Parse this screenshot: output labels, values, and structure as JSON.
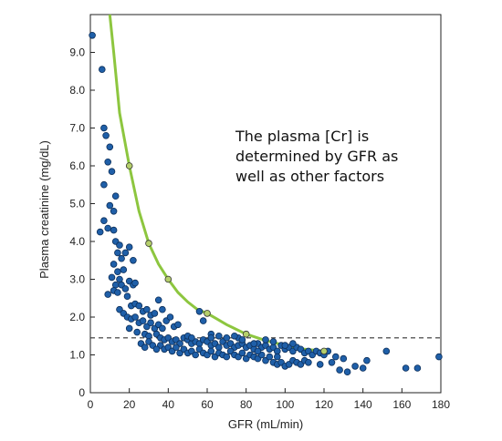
{
  "chart_data": {
    "type": "scatter",
    "title": "",
    "xlabel": "GFR (mL/min)",
    "ylabel": "Plasma creatinine (mg/dL)",
    "xlim": [
      0,
      180
    ],
    "ylim": [
      0,
      10
    ],
    "x_ticks": [
      0,
      20,
      40,
      60,
      80,
      100,
      120,
      140,
      160,
      180
    ],
    "y_ticks": [
      {
        "value": 0,
        "label": "0"
      },
      {
        "value": 1,
        "label": "1.0"
      },
      {
        "value": 2,
        "label": "2.0"
      },
      {
        "value": 3,
        "label": "3.0"
      },
      {
        "value": 4,
        "label": "4.0"
      },
      {
        "value": 5,
        "label": "5.0"
      },
      {
        "value": 6,
        "label": "6.0"
      },
      {
        "value": 7,
        "label": "7.0"
      },
      {
        "value": 8,
        "label": "8.0"
      },
      {
        "value": 9,
        "label": "9.0"
      }
    ],
    "grid": false,
    "annotation": [
      "The plasma [Cr] is",
      "determined by GFR as",
      "well as other factors"
    ],
    "reference_line": {
      "y": 1.45,
      "style": "dashed",
      "color": "#333333"
    },
    "curve": {
      "color": "#8dc63f",
      "points": [
        [
          10,
          10.4
        ],
        [
          12,
          9.0
        ],
        [
          15,
          7.4
        ],
        [
          20,
          6.0
        ],
        [
          25,
          4.8
        ],
        [
          30,
          3.95
        ],
        [
          35,
          3.4
        ],
        [
          40,
          3.0
        ],
        [
          45,
          2.65
        ],
        [
          50,
          2.4
        ],
        [
          55,
          2.2
        ],
        [
          60,
          2.1
        ],
        [
          65,
          1.95
        ],
        [
          70,
          1.8
        ],
        [
          80,
          1.55
        ],
        [
          90,
          1.38
        ],
        [
          100,
          1.25
        ],
        [
          110,
          1.15
        ],
        [
          120,
          1.1
        ]
      ],
      "markers_x": [
        20,
        30,
        40,
        60,
        80,
        120
      ],
      "marker_color": "#b5cf6b"
    },
    "series": [
      {
        "color": "#1f5fa8",
        "points": [
          [
            1,
            9.45
          ],
          [
            6,
            8.55
          ],
          [
            7,
            7.0
          ],
          [
            8,
            6.8
          ],
          [
            10,
            6.5
          ],
          [
            9,
            6.1
          ],
          [
            11,
            5.85
          ],
          [
            7,
            5.5
          ],
          [
            13,
            5.2
          ],
          [
            10,
            4.95
          ],
          [
            12,
            4.8
          ],
          [
            7,
            4.55
          ],
          [
            9,
            4.35
          ],
          [
            5,
            4.25
          ],
          [
            12,
            4.3
          ],
          [
            13,
            4.0
          ],
          [
            14,
            3.7
          ],
          [
            15,
            3.9
          ],
          [
            16,
            3.55
          ],
          [
            18,
            3.7
          ],
          [
            20,
            3.85
          ],
          [
            22,
            3.5
          ],
          [
            12,
            3.4
          ],
          [
            14,
            3.2
          ],
          [
            17,
            3.25
          ],
          [
            11,
            3.05
          ],
          [
            13,
            2.85
          ],
          [
            15,
            3.0
          ],
          [
            12,
            2.7
          ],
          [
            14,
            2.65
          ],
          [
            16,
            2.85
          ],
          [
            18,
            2.75
          ],
          [
            20,
            2.95
          ],
          [
            22,
            2.85
          ],
          [
            23,
            2.9
          ],
          [
            9,
            2.6
          ],
          [
            19,
            2.55
          ],
          [
            21,
            2.3
          ],
          [
            23,
            2.35
          ],
          [
            25,
            2.3
          ],
          [
            27,
            2.15
          ],
          [
            29,
            2.2
          ],
          [
            31,
            2.05
          ],
          [
            33,
            2.1
          ],
          [
            35,
            2.45
          ],
          [
            37,
            2.2
          ],
          [
            15,
            2.2
          ],
          [
            17,
            2.1
          ],
          [
            19,
            2.0
          ],
          [
            21,
            1.95
          ],
          [
            23,
            2.0
          ],
          [
            25,
            1.85
          ],
          [
            27,
            1.9
          ],
          [
            29,
            1.75
          ],
          [
            31,
            1.85
          ],
          [
            33,
            1.7
          ],
          [
            35,
            1.8
          ],
          [
            37,
            1.7
          ],
          [
            39,
            1.9
          ],
          [
            41,
            2.0
          ],
          [
            43,
            1.75
          ],
          [
            45,
            1.8
          ],
          [
            20,
            1.7
          ],
          [
            24,
            1.6
          ],
          [
            28,
            1.55
          ],
          [
            30,
            1.5
          ],
          [
            34,
            1.55
          ],
          [
            36,
            1.45
          ],
          [
            38,
            1.4
          ],
          [
            40,
            1.45
          ],
          [
            42,
            1.35
          ],
          [
            44,
            1.4
          ],
          [
            46,
            1.3
          ],
          [
            48,
            1.45
          ],
          [
            50,
            1.4
          ],
          [
            52,
            1.3
          ],
          [
            54,
            1.35
          ],
          [
            56,
            1.3
          ],
          [
            58,
            1.4
          ],
          [
            60,
            1.35
          ],
          [
            62,
            1.25
          ],
          [
            64,
            1.3
          ],
          [
            66,
            1.2
          ],
          [
            68,
            1.35
          ],
          [
            70,
            1.25
          ],
          [
            72,
            1.3
          ],
          [
            74,
            1.2
          ],
          [
            76,
            1.25
          ],
          [
            78,
            1.3
          ],
          [
            80,
            1.2
          ],
          [
            82,
            1.25
          ],
          [
            84,
            1.15
          ],
          [
            86,
            1.3
          ],
          [
            88,
            1.2
          ],
          [
            90,
            1.25
          ],
          [
            92,
            1.15
          ],
          [
            94,
            1.2
          ],
          [
            96,
            1.1
          ],
          [
            98,
            1.25
          ],
          [
            100,
            1.15
          ],
          [
            102,
            1.2
          ],
          [
            104,
            1.1
          ],
          [
            106,
            1.2
          ],
          [
            108,
            1.15
          ],
          [
            110,
            1.05
          ],
          [
            112,
            1.1
          ],
          [
            114,
            1.0
          ],
          [
            116,
            1.1
          ],
          [
            118,
            1.05
          ],
          [
            120,
            1.0
          ],
          [
            122,
            1.1
          ],
          [
            36,
            1.25
          ],
          [
            38,
            1.15
          ],
          [
            40,
            1.2
          ],
          [
            42,
            1.1
          ],
          [
            44,
            1.2
          ],
          [
            46,
            1.05
          ],
          [
            48,
            1.15
          ],
          [
            50,
            1.05
          ],
          [
            52,
            1.1
          ],
          [
            54,
            1.0
          ],
          [
            56,
            1.15
          ],
          [
            58,
            1.05
          ],
          [
            60,
            1.0
          ],
          [
            62,
            1.1
          ],
          [
            64,
            0.95
          ],
          [
            66,
            1.05
          ],
          [
            68,
            1.0
          ],
          [
            70,
            0.95
          ],
          [
            72,
            1.1
          ],
          [
            74,
            1.0
          ],
          [
            76,
            0.95
          ],
          [
            78,
            1.05
          ],
          [
            80,
            0.9
          ],
          [
            82,
            1.0
          ],
          [
            84,
            0.95
          ],
          [
            86,
            0.9
          ],
          [
            88,
            1.0
          ],
          [
            90,
            0.85
          ],
          [
            92,
            0.95
          ],
          [
            94,
            0.8
          ],
          [
            96,
            0.75
          ],
          [
            98,
            0.8
          ],
          [
            100,
            0.7
          ],
          [
            102,
            0.75
          ],
          [
            104,
            0.85
          ],
          [
            106,
            0.8
          ],
          [
            108,
            0.75
          ],
          [
            110,
            0.85
          ],
          [
            112,
            0.8
          ],
          [
            26,
            1.3
          ],
          [
            28,
            1.2
          ],
          [
            30,
            1.35
          ],
          [
            32,
            1.25
          ],
          [
            34,
            1.15
          ],
          [
            50,
            1.5
          ],
          [
            52,
            1.45
          ],
          [
            56,
            2.15
          ],
          [
            58,
            1.9
          ],
          [
            62,
            1.55
          ],
          [
            70,
            1.45
          ],
          [
            76,
            1.45
          ],
          [
            86,
            1.1
          ],
          [
            96,
            0.95
          ],
          [
            118,
            0.75
          ],
          [
            124,
            0.8
          ],
          [
            128,
            0.6
          ],
          [
            132,
            0.55
          ],
          [
            136,
            0.7
          ],
          [
            140,
            0.65
          ],
          [
            126,
            0.95
          ],
          [
            130,
            0.9
          ],
          [
            142,
            0.85
          ],
          [
            152,
            1.1
          ],
          [
            162,
            0.65
          ],
          [
            168,
            0.65
          ],
          [
            179,
            0.95
          ],
          [
            104,
            1.3
          ],
          [
            100,
            1.25
          ],
          [
            94,
            1.35
          ],
          [
            90,
            1.4
          ],
          [
            84,
            1.3
          ],
          [
            78,
            1.4
          ],
          [
            74,
            1.5
          ],
          [
            66,
            1.5
          ],
          [
            62,
            1.45
          ]
        ]
      }
    ]
  }
}
